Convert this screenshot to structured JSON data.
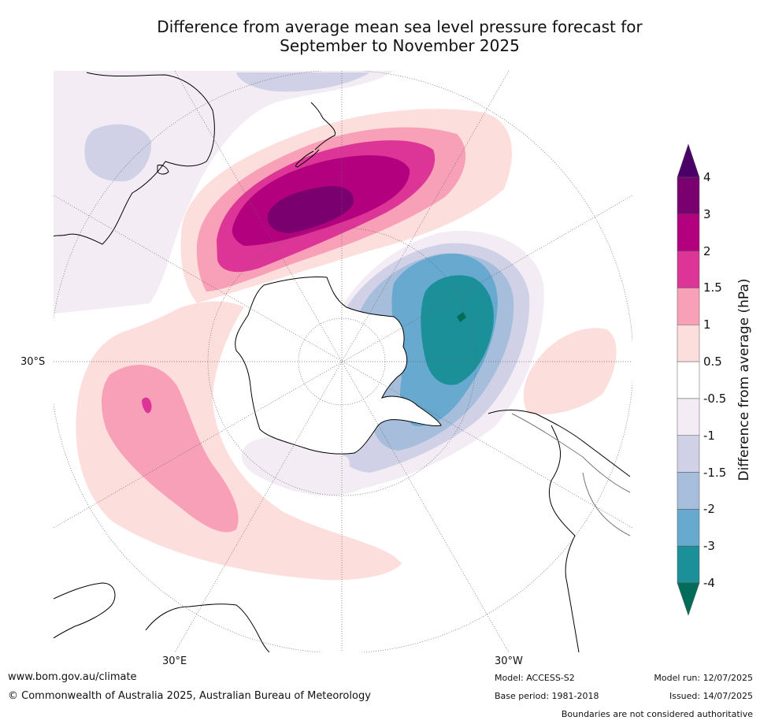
{
  "title": {
    "line1": "Difference from average mean sea level pressure forecast for",
    "line2": "September to November 2025"
  },
  "map": {
    "projection": "south polar stereographic",
    "lat_labels": [
      "30°S"
    ],
    "lon_labels": [
      "30°E",
      "30°W"
    ]
  },
  "colorbar": {
    "title": "Difference from average (hPa)",
    "tick_labels": [
      "4",
      "3",
      "2",
      "1.5",
      "1",
      "0.5",
      "-0.5",
      "-1",
      "-1.5",
      "-2",
      "-3",
      "-4"
    ],
    "bins": [
      {
        "range": "> 4",
        "color": "#4b0068"
      },
      {
        "range": "3 to 4",
        "color": "#7a006f"
      },
      {
        "range": "2 to 3",
        "color": "#b3007e"
      },
      {
        "range": "1.5 to 2",
        "color": "#dd3597"
      },
      {
        "range": "1 to 1.5",
        "color": "#f8a0b8"
      },
      {
        "range": "0.5 to 1",
        "color": "#fcdedd"
      },
      {
        "range": "-0.5 to 0.5",
        "color": "#ffffff"
      },
      {
        "range": "-1 to -0.5",
        "color": "#f3ecf4"
      },
      {
        "range": "-1.5 to -1",
        "color": "#d0d1e6"
      },
      {
        "range": "-2 to -1.5",
        "color": "#a6bddb"
      },
      {
        "range": "-3 to -2",
        "color": "#67a9cf"
      },
      {
        "range": "-4 to -3",
        "color": "#1c9099"
      },
      {
        "range": "< -4",
        "color": "#016c59"
      }
    ]
  },
  "footer": {
    "website": "www.bom.gov.au/climate",
    "copyright": "© Commonwealth of Australia 2025, Australian Bureau of Meteorology",
    "model": "Model: ACCESS-S2",
    "base_period": "Base period: 1981-2018",
    "model_run": "Model run: 12/07/2025",
    "issued": "Issued: 14/07/2025",
    "disclaimer": "Boundaries are not considered authoritative"
  }
}
